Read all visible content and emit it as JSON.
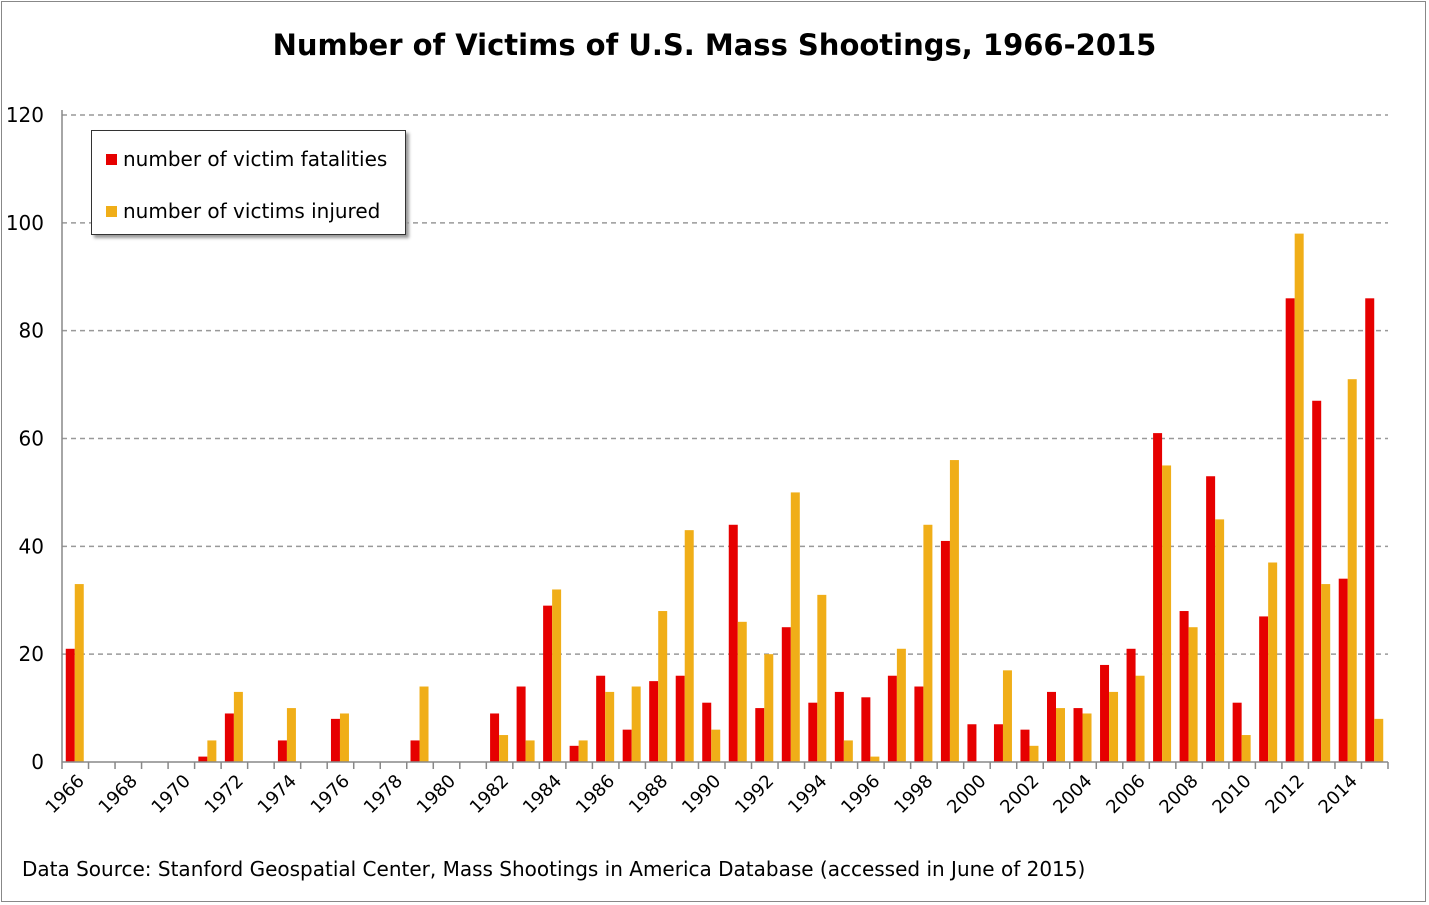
{
  "chart_data": {
    "type": "bar",
    "title": "Number of Victims of U.S. Mass Shootings, 1966-2015",
    "source_note": "Data Source: Stanford Geospatial Center, Mass Shootings in America Database (accessed in June of 2015)",
    "xlabel": "",
    "ylabel": "",
    "ylim": [
      0,
      120
    ],
    "yticks": [
      0,
      20,
      40,
      60,
      80,
      100,
      120
    ],
    "grid": "horizontal dashed",
    "legend_placement": "top-left",
    "categories": [
      1966,
      1967,
      1968,
      1969,
      1970,
      1971,
      1972,
      1973,
      1974,
      1975,
      1976,
      1977,
      1978,
      1979,
      1980,
      1981,
      1982,
      1983,
      1984,
      1985,
      1986,
      1987,
      1988,
      1989,
      1990,
      1991,
      1992,
      1993,
      1994,
      1995,
      1996,
      1997,
      1998,
      1999,
      2000,
      2001,
      2002,
      2003,
      2004,
      2005,
      2006,
      2007,
      2008,
      2009,
      2010,
      2011,
      2012,
      2013,
      2014,
      2015
    ],
    "xtick_labels": [
      "1966",
      "1968",
      "1970",
      "1972",
      "1974",
      "1976",
      "1978",
      "1980",
      "1982",
      "1984",
      "1986",
      "1988",
      "1990",
      "1992",
      "1994",
      "1996",
      "1998",
      "2000",
      "2002",
      "2004",
      "2006",
      "2008",
      "2010",
      "2012",
      "2014"
    ],
    "series": [
      {
        "name": "number of victim fatalities",
        "color": "#e60000",
        "values": [
          21,
          0,
          0,
          0,
          0,
          1,
          9,
          0,
          4,
          0,
          8,
          0,
          0,
          4,
          0,
          0,
          9,
          14,
          29,
          3,
          16,
          6,
          15,
          16,
          11,
          44,
          10,
          25,
          11,
          13,
          12,
          16,
          14,
          41,
          7,
          7,
          6,
          13,
          10,
          18,
          21,
          61,
          28,
          53,
          11,
          27,
          86,
          67,
          34,
          86
        ]
      },
      {
        "name": "number of victims injured",
        "color": "#f0ae18",
        "values": [
          33,
          0,
          0,
          0,
          0,
          4,
          13,
          0,
          10,
          0,
          9,
          0,
          0,
          14,
          0,
          0,
          5,
          4,
          32,
          4,
          13,
          14,
          28,
          43,
          6,
          26,
          20,
          50,
          31,
          4,
          1,
          21,
          44,
          56,
          0,
          17,
          3,
          10,
          9,
          13,
          16,
          55,
          25,
          45,
          5,
          37,
          98,
          33,
          71,
          8
        ]
      }
    ]
  }
}
